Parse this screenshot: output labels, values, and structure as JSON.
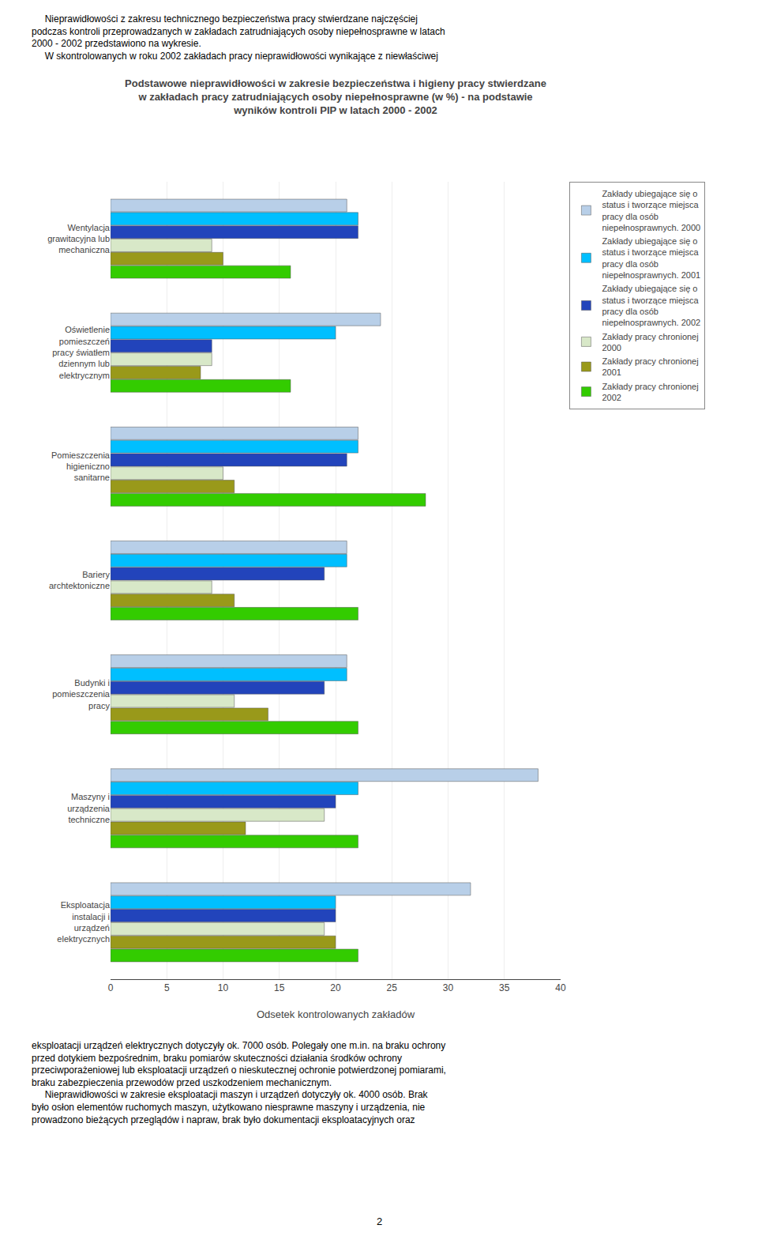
{
  "chart_data": {
    "type": "bar",
    "orientation": "horizontal",
    "title": "Podstawowe nieprawidłowości w zakresie bezpieczeństwa i higieny pracy stwierdzane\nw zakładach pracy zatrudniających osoby niepełnosprawne (w %) - na podstawie\nwyników kontroli PIP w latach 2000 - 2002",
    "xlabel": "Odsetek kontrolowanych zakładów",
    "categories": [
      "Wentylacja\ngrawitacyjna lub\nmechaniczna",
      "Oświetlenie\npomieszczeń\npracy światłem\ndziennym lub\nelektrycznym",
      "Pomieszczenia\nhigieniczno\nsanitarne",
      "Bariery\narchtektoniczne",
      "Budynki i\npomieszczenia\npracy",
      "Maszyny i\nurządzenia\ntechniczne",
      "Eksploatacja\ninstalacji i\nurządzeń\nelektrycznych"
    ],
    "series": [
      {
        "name": "Zakłady ubiegające się o\nstatus i tworzące miejsca\npracy dla osób\nniepełnosprawnych. 2000",
        "color": "#b8cfe8",
        "values": [
          21,
          24,
          22,
          21,
          21,
          38,
          32
        ]
      },
      {
        "name": "Zakłady ubiegające się o\nstatus i tworzące miejsca\npracy dla osób\nniepełnosprawnych. 2001",
        "color": "#00bfff",
        "values": [
          22,
          20,
          22,
          21,
          21,
          22,
          20
        ]
      },
      {
        "name": "Zakłady ubiegające się o\nstatus i tworzące miejsca\npracy dla osób\nniepełnosprawnych. 2002",
        "color": "#2244bb",
        "values": [
          22,
          9,
          21,
          19,
          19,
          20,
          20
        ]
      },
      {
        "name": "Zakłady pracy chronionej\n2000",
        "color": "#d8e8c8",
        "values": [
          9,
          9,
          10,
          9,
          11,
          19,
          19
        ]
      },
      {
        "name": "Zakłady pracy chronionej\n2001",
        "color": "#99991a",
        "values": [
          10,
          8,
          11,
          11,
          14,
          12,
          20
        ]
      },
      {
        "name": "Zakłady pracy chronionej\n2002",
        "color": "#33cc00",
        "values": [
          16,
          16,
          28,
          22,
          22,
          22,
          22
        ]
      }
    ],
    "xlim": [
      0,
      40
    ],
    "xticks": [
      0,
      5,
      10,
      15,
      20,
      25,
      30,
      35,
      40
    ],
    "grid": true,
    "legend": "right",
    "annotations": [
      "     Nieprawidłowości z zakresu technicznego bezpieczeństwa pracy stwierdzane najczęściej\npodczas kontroli przeprowadzanych w zakładach zatrudniających osoby niepełnosprawne w latach\n2000 - 2002 przedstawiono na wykresie.\n     W skontrolowanych w roku 2002 zakładach pracy nieprawidłowości wynikające z niewłaściwej",
      "eksploatacji urządzeń elektrycznych dotyczyły ok. 7000 osób. Polegały one m.in. na braku ochrony\nprzed dotykiem bezpośrednim, braku pomiarów skuteczności działania środków ochrony\nprzeciwporażeniowej lub eksploatacji urządzeń o nieskutecznej ochronie potwierdzonej pomiarami,\nbraku zabezpieczenia przewodów przed uszkodzeniem mechanicznym.\n     Nieprawidłowości w zakresie eksploatacji maszyn i urządzeń dotyczyły ok. 4000 osób. Brak\nbyło osłon elementów ruchomych maszyn, użytkowano niesprawne maszyny i urządzenia, nie\nprowadzono bieżących przeglądów i napraw, brak było dokumentacji eksploatacyjnych oraz",
      "2"
    ]
  }
}
